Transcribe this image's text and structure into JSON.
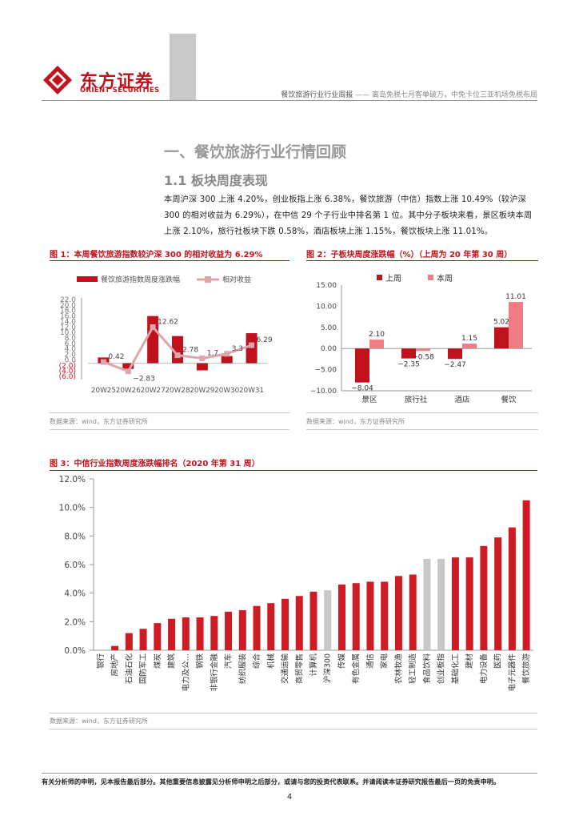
{
  "header": {
    "logo_icon": "orient-securities-logo",
    "company_cn": "东方证券",
    "company_en": "ORIENT SECURITIES",
    "report_name": "餐饮旅游行业行业周报",
    "separator": " —— ",
    "report_topic": "离岛免税七月客单破万，中免卡位三亚机场免税布局"
  },
  "section_title": "一、餐饮旅游行业行情回顾",
  "sub_title": "1.1 板块周度表现",
  "body_text": "本周沪深 300 上涨 4.20%，创业板指上涨 6.38%，餐饮旅游（中信）指数上涨 10.49%（较沪深 300 的相对收益为 6.29%），在中信 29 个子行业中排名第 1 位。其中分子板块来看，景区板块本周上涨 2.10%，旅行社板块下跌 0.58%，酒店板块上涨 1.15%，餐饮板块上涨 11.01%。",
  "figure1": {
    "title": "图 1：本周餐饮旅游指数较沪深 300 的相对收益为 6.29%",
    "source": "数据来源：wind，东方证券研究所"
  },
  "figure2": {
    "title": "图 2：子板块周度涨跌幅（%）（上周为 20 年第 30 周）",
    "source": "数据来源：wind，东方证券研究所"
  },
  "figure3": {
    "title": "图 3：中信行业指数周度涨跌幅排名（2020 年第 31 周）",
    "source": "数据来源：wind，东方证券研究所"
  },
  "colors": {
    "brand_red": "#c0121c",
    "bar_red": "#c0121c",
    "bar_pink": "#f07c84",
    "line_pink": "#dba7aa",
    "bar_grey": "#c8c8c8",
    "bar_red3": "#cf1c24"
  },
  "chart_data": [
    {
      "type": "bar+line",
      "title": "图 1：本周餐饮旅游指数较沪深 300 的相对收益为 6.29%",
      "categories": [
        "20W25",
        "20W26",
        "20W27",
        "20W28",
        "20W29",
        "20W30",
        "20W31"
      ],
      "series": [
        {
          "name": "餐饮旅游指数周度涨跌幅",
          "type": "bar",
          "values": [
            2.0,
            -2.0,
            16.5,
            9.5,
            -2.5,
            2.5,
            10.5
          ]
        },
        {
          "name": "相对收益",
          "type": "line",
          "values": [
            0.42,
            -2.83,
            12.62,
            2.78,
            1.7,
            3.3,
            6.29
          ]
        }
      ],
      "data_labels": [
        "0.42",
        "−2.83",
        "12.62",
        "2.78",
        "1.7",
        "3.3",
        "6.29"
      ],
      "y_ticks": [
        "22.0",
        "20.0",
        "18.0",
        "16.0",
        "14.0",
        "12.0",
        "10.0",
        "8.0",
        "6.0",
        "4.0",
        "2.0",
        "0.0",
        "(2.0)",
        "(4.0)",
        "(6.0)"
      ],
      "ylim": [
        -6,
        22
      ],
      "legend_position": "top"
    },
    {
      "type": "bar",
      "title": "图 2：子板块周度涨跌幅（%）（上周为 20 年第 30 周）",
      "categories": [
        "景区",
        "旅行社",
        "酒店",
        "餐饮"
      ],
      "series": [
        {
          "name": "上周",
          "values": [
            -8.04,
            -2.35,
            -2.47,
            5.02
          ]
        },
        {
          "name": "本周",
          "values": [
            2.1,
            -0.58,
            1.15,
            11.01
          ]
        }
      ],
      "data_labels": {
        "上周": [
          "−8.04",
          "−2.35",
          "−2.47",
          "5.02"
        ],
        "本周": [
          "2.10",
          "−0.58",
          "1.15",
          "11.01"
        ]
      },
      "y_ticks": [
        "15.00",
        "10.00",
        "5.00",
        "0.00",
        "−5.00",
        "−10.00"
      ],
      "ylim": [
        -10,
        15
      ],
      "legend_position": "top"
    },
    {
      "type": "bar",
      "title": "图 3：中信行业指数周度涨跌幅排名（2020 年第 31 周）",
      "categories": [
        "银行",
        "房地产",
        "石油石化",
        "国防军工",
        "煤炭",
        "建筑",
        "电力及公…",
        "钢铁",
        "非银行金融",
        "汽车",
        "纺织服装",
        "综合",
        "机械",
        "交通运输",
        "商贸零售",
        "计算机",
        "沪深300",
        "传媒",
        "有色金属",
        "通信",
        "家电",
        "农林牧渔",
        "轻工制造",
        "食品饮料",
        "创业板指",
        "基础化工",
        "建材",
        "电力设备",
        "医药",
        "电子元器件",
        "餐饮旅游"
      ],
      "values": [
        0.0,
        0.3,
        1.2,
        1.5,
        1.9,
        2.2,
        2.3,
        2.3,
        2.4,
        2.7,
        2.8,
        3.1,
        3.3,
        3.6,
        3.8,
        4.1,
        4.2,
        4.6,
        4.7,
        4.8,
        4.8,
        5.2,
        5.3,
        6.4,
        6.4,
        6.5,
        6.5,
        7.3,
        7.9,
        8.6,
        10.5
      ],
      "highlight": [
        "沪深300",
        "食品饮料",
        "创业板指"
      ],
      "y_ticks": [
        "12.0%",
        "10.0%",
        "8.0%",
        "6.0%",
        "4.0%",
        "2.0%",
        "0.0%"
      ],
      "ylim": [
        0,
        12
      ]
    }
  ],
  "footer": {
    "disclaimer": "有关分析师的申明，见本报告最后部分。其他重要信息披露见分析师申明之后部分，或请与您的投资代表联系。并请阅读本证券研究报告最后一页的免责申明。",
    "page_number": "4"
  }
}
